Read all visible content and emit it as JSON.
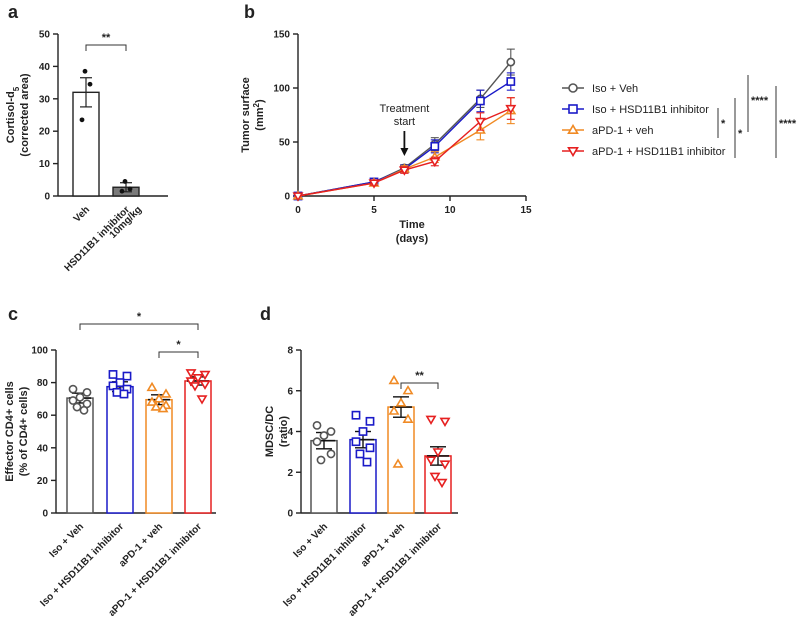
{
  "panels": {
    "a": "a",
    "b": "b",
    "c": "c",
    "d": "d"
  },
  "colors": {
    "iso_veh": "#555555",
    "iso_hsd": "#1a1ac8",
    "apd1_veh": "#f08a24",
    "apd1_hsd": "#e62020",
    "hsd_bar_fill": "#7a7a7a"
  },
  "chart_data": [
    {
      "id": "a",
      "type": "bar",
      "title": "",
      "ylabel_line1": "Cortisol-d",
      "ylabel_sub": "5",
      "ylabel_line2": "(corrected area)",
      "ylim": [
        0,
        50
      ],
      "yticks": [
        0,
        10,
        20,
        30,
        40,
        50
      ],
      "categories": [
        "Veh",
        "HSD11B1 inhibitor"
      ],
      "category_sublabel": "10mg/kg",
      "values": [
        32,
        2.7
      ],
      "sem": [
        4.5,
        1.4
      ],
      "points": [
        [
          38.5,
          34.5,
          23.5
        ],
        [
          4.5,
          2.2,
          1.5
        ]
      ],
      "significance": [
        {
          "from": 0,
          "to": 1,
          "label": "**"
        }
      ]
    },
    {
      "id": "b",
      "type": "line",
      "xlabel": "Time",
      "xlabel2": "(days)",
      "ylabel": "Tumor surface",
      "ylabel2": "(mm",
      "ylabel_sup": "2",
      "xlim": [
        0,
        15
      ],
      "ylim": [
        0,
        150
      ],
      "xticks": [
        0,
        5,
        10,
        15
      ],
      "yticks": [
        0,
        50,
        100,
        150
      ],
      "annotation": {
        "line1": "Treatment",
        "line2": "start",
        "x": 7
      },
      "x": [
        0,
        5,
        7,
        9,
        12,
        14
      ],
      "series": [
        {
          "key": "iso_veh",
          "name": "Iso + Veh",
          "marker": "circle",
          "values": [
            0,
            13,
            26,
            48,
            90,
            124
          ],
          "sem": [
            0,
            2,
            3,
            6,
            8,
            12
          ]
        },
        {
          "key": "iso_hsd",
          "name": "Iso + HSD11B1 inhibitor",
          "marker": "square",
          "values": [
            0,
            13,
            25,
            46,
            88,
            106
          ],
          "sem": [
            0,
            2,
            3,
            6,
            10,
            8
          ]
        },
        {
          "key": "apd1_veh",
          "name": "aPD-1 + veh",
          "marker": "triangle-up",
          "values": [
            0,
            12,
            25,
            36,
            61,
            79
          ],
          "sem": [
            0,
            2,
            3,
            5,
            9,
            12
          ]
        },
        {
          "key": "apd1_hsd",
          "name": "aPD-1 + HSD11B1 inhibitor",
          "marker": "triangle-down",
          "values": [
            0,
            12,
            24,
            32,
            69,
            81
          ],
          "sem": [
            0,
            2,
            3,
            4,
            8,
            10
          ]
        }
      ],
      "significance": [
        "*",
        "*",
        "****",
        "****"
      ]
    },
    {
      "id": "c",
      "type": "bar",
      "ylabel": "Effector CD4+ cells",
      "ylabel2": "(% of CD4+ cells)",
      "ylim": [
        0,
        100
      ],
      "yticks": [
        0,
        20,
        40,
        60,
        80,
        100
      ],
      "categories": [
        "Iso + Veh",
        "Iso + HSD11B1 inhibitor",
        "aPD-1 + veh",
        "aPD-1 + HSD11B1 inhibitor"
      ],
      "values": [
        70.5,
        77.5,
        69.5,
        81
      ],
      "sem": [
        3,
        3,
        3,
        2.5
      ],
      "points": [
        [
          76,
          74,
          71,
          69,
          67,
          65,
          63
        ],
        [
          85,
          84,
          80,
          78,
          76,
          74,
          73
        ],
        [
          77,
          73,
          70,
          68,
          66,
          65,
          64
        ],
        [
          86,
          85,
          83,
          81,
          79,
          78,
          70
        ]
      ],
      "significance": [
        {
          "from": 0,
          "to": 3,
          "label": "*"
        },
        {
          "from": 2,
          "to": 3,
          "label": "*"
        }
      ]
    },
    {
      "id": "d",
      "type": "bar",
      "ylabel": "MDSC/DC",
      "ylabel2": "(ratio)",
      "ylim": [
        0,
        8
      ],
      "yticks": [
        0,
        2,
        4,
        6,
        8
      ],
      "categories": [
        "Iso + Veh",
        "Iso + HSD11B1 inhibitor",
        "aPD-1 + veh",
        "aPD-1 + HSD11B1 inhibitor"
      ],
      "values": [
        3.55,
        3.6,
        5.2,
        2.8
      ],
      "sem": [
        0.4,
        0.4,
        0.5,
        0.45
      ],
      "points": [
        [
          4.3,
          4.0,
          3.8,
          3.5,
          2.9,
          2.6
        ],
        [
          4.8,
          4.5,
          4.0,
          3.5,
          3.2,
          2.9,
          2.5
        ],
        [
          6.5,
          6.0,
          5.4,
          5.0,
          4.6,
          2.4
        ],
        [
          4.6,
          4.5,
          3.0,
          2.6,
          2.4,
          1.8,
          1.5
        ]
      ],
      "significance": [
        {
          "from": 2,
          "to": 3,
          "label": "**"
        }
      ]
    }
  ]
}
